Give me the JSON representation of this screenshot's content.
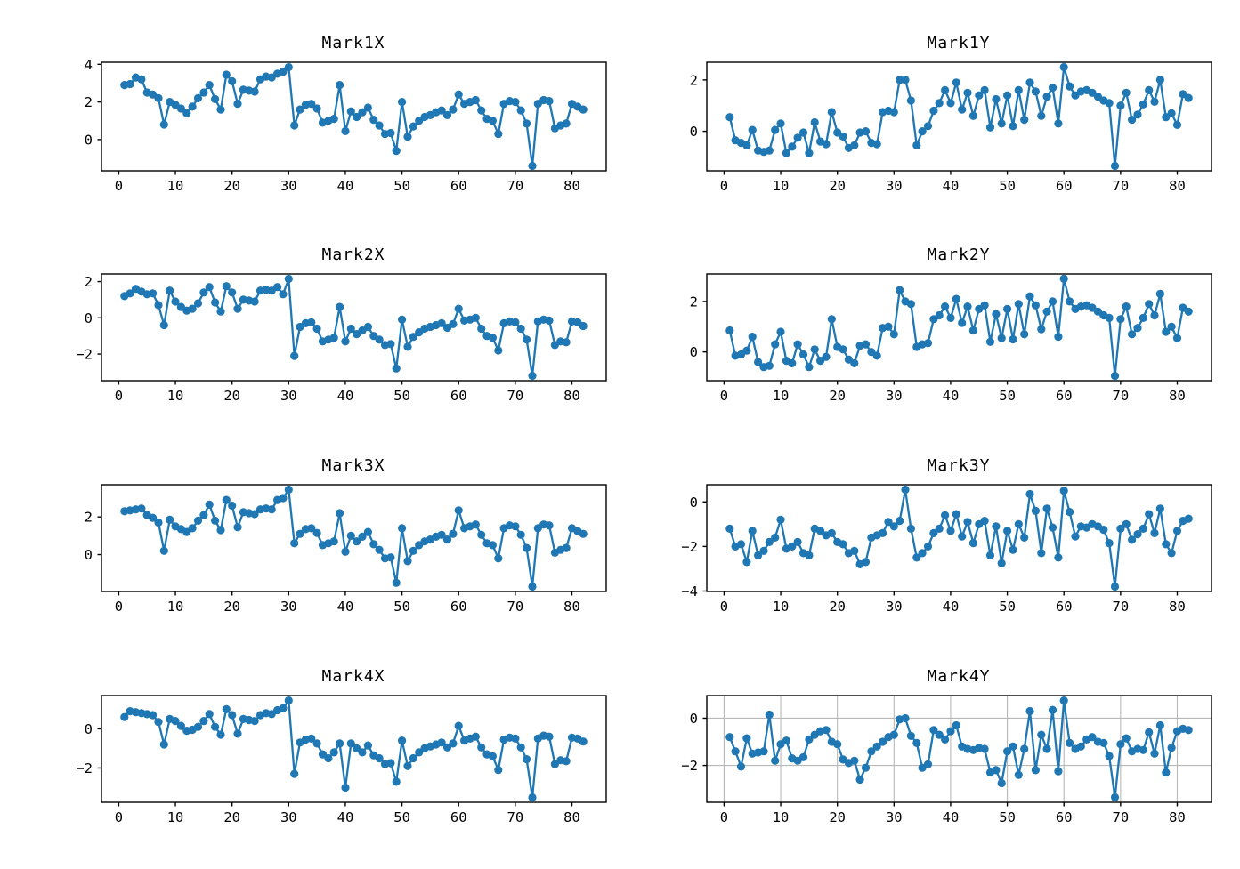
{
  "figure": {
    "background": "#ffffff",
    "accent_color": "#1f77b4",
    "spine_color": "#000000",
    "grid_color": "#b8b8b8"
  },
  "chart_data": [
    {
      "type": "line",
      "title": "Mark1X",
      "xlabel": "",
      "ylabel": "",
      "marker": "circle",
      "color": "#1f77b4",
      "grid": false,
      "x_start": 1,
      "xlim": [
        -3.05,
        86.05
      ],
      "xticks": [
        0,
        10,
        20,
        30,
        40,
        50,
        60,
        70,
        80
      ],
      "ylim": [
        -1.66,
        4.11
      ],
      "yticks": [
        4,
        2,
        0
      ],
      "values": [
        2.9,
        2.95,
        3.3,
        3.2,
        2.5,
        2.4,
        2.2,
        0.8,
        2.0,
        1.85,
        1.65,
        1.4,
        1.75,
        2.2,
        2.5,
        2.9,
        2.15,
        1.6,
        3.45,
        3.1,
        1.9,
        2.65,
        2.6,
        2.55,
        3.2,
        3.35,
        3.3,
        3.5,
        3.6,
        3.85,
        0.75,
        1.6,
        1.85,
        1.9,
        1.65,
        0.9,
        1.0,
        1.1,
        2.9,
        0.45,
        1.5,
        1.2,
        1.45,
        1.7,
        1.05,
        0.75,
        0.3,
        0.35,
        -0.6,
        2.0,
        0.15,
        0.7,
        1.0,
        1.2,
        1.3,
        1.45,
        1.55,
        1.3,
        1.6,
        2.4,
        1.9,
        2.0,
        2.1,
        1.55,
        1.1,
        1.0,
        0.3,
        1.9,
        2.05,
        2.0,
        1.55,
        0.85,
        -1.4,
        1.9,
        2.1,
        2.05,
        0.6,
        0.75,
        0.85,
        1.9,
        1.75,
        1.6
      ]
    },
    {
      "type": "line",
      "title": "Mark1Y",
      "xlabel": "",
      "ylabel": "",
      "marker": "circle",
      "color": "#1f77b4",
      "grid": false,
      "x_start": 1,
      "xlim": [
        -3.05,
        86.05
      ],
      "xticks": [
        0,
        10,
        20,
        30,
        40,
        50,
        60,
        70,
        80
      ],
      "ylim": [
        -1.54,
        2.69
      ],
      "yticks": [
        2,
        0
      ],
      "values": [
        0.55,
        -0.35,
        -0.45,
        -0.55,
        0.05,
        -0.75,
        -0.8,
        -0.75,
        0.05,
        0.3,
        -0.85,
        -0.6,
        -0.25,
        -0.05,
        -0.85,
        0.35,
        -0.4,
        -0.5,
        0.75,
        -0.05,
        -0.2,
        -0.65,
        -0.55,
        -0.05,
        0.0,
        -0.45,
        -0.5,
        0.75,
        0.8,
        0.75,
        2.0,
        2.0,
        1.2,
        -0.55,
        0.0,
        0.2,
        0.8,
        1.1,
        1.6,
        1.1,
        1.9,
        0.85,
        1.5,
        0.6,
        1.4,
        1.6,
        0.15,
        1.25,
        0.3,
        1.4,
        0.2,
        1.6,
        0.45,
        1.9,
        1.55,
        0.6,
        1.35,
        1.7,
        0.3,
        2.5,
        1.75,
        1.4,
        1.55,
        1.6,
        1.5,
        1.35,
        1.2,
        1.1,
        -1.35,
        1.0,
        1.5,
        0.45,
        0.65,
        1.05,
        1.6,
        1.15,
        2.0,
        0.55,
        0.7,
        0.25,
        1.45,
        1.3
      ]
    },
    {
      "type": "line",
      "title": "Mark2X",
      "xlabel": "",
      "ylabel": "",
      "marker": "circle",
      "color": "#1f77b4",
      "grid": false,
      "x_start": 1,
      "xlim": [
        -3.05,
        86.05
      ],
      "xticks": [
        0,
        10,
        20,
        30,
        40,
        50,
        60,
        70,
        80
      ],
      "ylim": [
        -3.47,
        2.42
      ],
      "yticks": [
        2,
        0,
        -2
      ],
      "values": [
        1.2,
        1.35,
        1.6,
        1.45,
        1.3,
        1.35,
        0.7,
        -0.4,
        1.5,
        0.9,
        0.6,
        0.4,
        0.5,
        0.8,
        1.4,
        1.7,
        0.85,
        0.35,
        1.75,
        1.4,
        0.5,
        1.0,
        0.95,
        0.9,
        1.5,
        1.55,
        1.5,
        1.7,
        1.3,
        2.15,
        -2.1,
        -0.5,
        -0.3,
        -0.25,
        -0.6,
        -1.3,
        -1.2,
        -1.1,
        0.6,
        -1.3,
        -0.6,
        -0.9,
        -0.7,
        -0.5,
        -1.0,
        -1.2,
        -1.5,
        -1.45,
        -2.8,
        -0.1,
        -1.6,
        -1.05,
        -0.8,
        -0.6,
        -0.5,
        -0.4,
        -0.3,
        -0.55,
        -0.35,
        0.5,
        -0.15,
        -0.1,
        0.0,
        -0.6,
        -1.0,
        -1.1,
        -1.8,
        -0.3,
        -0.2,
        -0.25,
        -0.6,
        -1.2,
        -3.2,
        -0.2,
        -0.1,
        -0.15,
        -1.5,
        -1.3,
        -1.35,
        -0.2,
        -0.25,
        -0.45
      ]
    },
    {
      "type": "line",
      "title": "Mark2Y",
      "xlabel": "",
      "ylabel": "",
      "marker": "circle",
      "color": "#1f77b4",
      "grid": false,
      "x_start": 1,
      "xlim": [
        -3.05,
        86.05
      ],
      "xticks": [
        0,
        10,
        20,
        30,
        40,
        50,
        60,
        70,
        80
      ],
      "ylim": [
        -1.14,
        3.09
      ],
      "yticks": [
        2,
        0
      ],
      "values": [
        0.85,
        -0.15,
        -0.1,
        0.05,
        0.6,
        -0.4,
        -0.6,
        -0.55,
        0.3,
        0.8,
        -0.35,
        -0.45,
        0.3,
        -0.1,
        -0.6,
        0.1,
        -0.35,
        -0.2,
        1.3,
        0.2,
        0.1,
        -0.3,
        -0.45,
        0.25,
        0.3,
        0.0,
        -0.15,
        0.95,
        1.0,
        0.7,
        2.45,
        2.0,
        1.9,
        0.2,
        0.3,
        0.35,
        1.3,
        1.45,
        1.8,
        1.35,
        2.1,
        1.15,
        1.8,
        0.85,
        1.7,
        1.85,
        0.4,
        1.5,
        0.55,
        1.7,
        0.5,
        1.9,
        0.7,
        2.2,
        1.85,
        0.9,
        1.6,
        2.0,
        0.6,
        2.9,
        2.0,
        1.7,
        1.8,
        1.85,
        1.75,
        1.6,
        1.45,
        1.35,
        -0.95,
        1.3,
        1.8,
        0.7,
        0.95,
        1.35,
        1.9,
        1.45,
        2.3,
        0.8,
        1.0,
        0.55,
        1.75,
        1.6
      ]
    },
    {
      "type": "line",
      "title": "Mark3X",
      "xlabel": "",
      "ylabel": "",
      "marker": "circle",
      "color": "#1f77b4",
      "grid": false,
      "x_start": 1,
      "xlim": [
        -3.05,
        86.05
      ],
      "xticks": [
        0,
        10,
        20,
        30,
        40,
        50,
        60,
        70,
        80
      ],
      "ylim": [
        -1.96,
        3.71
      ],
      "yticks": [
        2,
        0
      ],
      "values": [
        2.3,
        2.35,
        2.4,
        2.45,
        2.1,
        1.95,
        1.7,
        0.2,
        1.85,
        1.5,
        1.35,
        1.2,
        1.4,
        1.8,
        2.1,
        2.65,
        1.8,
        1.3,
        2.9,
        2.6,
        1.45,
        2.25,
        2.2,
        2.15,
        2.4,
        2.45,
        2.4,
        2.9,
        3.0,
        3.45,
        0.6,
        1.1,
        1.35,
        1.4,
        1.15,
        0.5,
        0.6,
        0.7,
        2.2,
        0.15,
        1.0,
        0.7,
        0.95,
        1.2,
        0.55,
        0.25,
        -0.2,
        -0.15,
        -1.5,
        1.4,
        -0.35,
        0.2,
        0.5,
        0.7,
        0.8,
        0.95,
        1.05,
        0.8,
        1.1,
        2.35,
        1.4,
        1.5,
        1.6,
        1.05,
        0.6,
        0.5,
        -0.2,
        1.4,
        1.55,
        1.5,
        1.05,
        0.35,
        -1.7,
        1.4,
        1.6,
        1.55,
        0.1,
        0.25,
        0.35,
        1.4,
        1.25,
        1.1
      ]
    },
    {
      "type": "line",
      "title": "Mark3Y",
      "xlabel": "",
      "ylabel": "",
      "marker": "circle",
      "color": "#1f77b4",
      "grid": false,
      "x_start": 1,
      "xlim": [
        -3.05,
        86.05
      ],
      "xticks": [
        0,
        10,
        20,
        30,
        40,
        50,
        60,
        70,
        80
      ],
      "ylim": [
        -4.02,
        0.77
      ],
      "yticks": [
        0,
        -2,
        -4
      ],
      "values": [
        -1.2,
        -2.0,
        -1.9,
        -2.7,
        -1.3,
        -2.4,
        -2.2,
        -1.8,
        -1.6,
        -0.8,
        -2.1,
        -2.0,
        -1.8,
        -2.3,
        -2.4,
        -1.2,
        -1.3,
        -1.5,
        -1.4,
        -1.8,
        -1.9,
        -2.3,
        -2.2,
        -2.8,
        -2.7,
        -1.6,
        -1.5,
        -1.4,
        -0.9,
        -1.1,
        -0.85,
        0.55,
        -1.2,
        -2.5,
        -2.3,
        -2.0,
        -1.4,
        -1.2,
        -0.6,
        -1.3,
        -0.55,
        -1.55,
        -0.9,
        -1.85,
        -1.0,
        -0.85,
        -2.4,
        -1.1,
        -2.75,
        -1.3,
        -2.15,
        -1.0,
        -1.6,
        0.35,
        -0.4,
        -2.3,
        -0.3,
        -1.15,
        -2.5,
        0.5,
        -0.45,
        -1.55,
        -1.1,
        -1.15,
        -1.0,
        -1.1,
        -1.25,
        -1.85,
        -3.8,
        -1.2,
        -1.0,
        -1.7,
        -1.45,
        -1.2,
        -0.55,
        -1.4,
        -0.3,
        -1.9,
        -2.3,
        -1.3,
        -0.85,
        -0.75
      ]
    },
    {
      "type": "line",
      "title": "Mark4X",
      "xlabel": "",
      "ylabel": "",
      "marker": "circle",
      "color": "#1f77b4",
      "grid": false,
      "x_start": 1,
      "xlim": [
        -3.05,
        86.05
      ],
      "xticks": [
        0,
        10,
        20,
        30,
        40,
        50,
        60,
        70,
        80
      ],
      "ylim": [
        -3.75,
        1.7
      ],
      "yticks": [
        0,
        -2
      ],
      "values": [
        0.6,
        0.9,
        0.85,
        0.8,
        0.75,
        0.7,
        0.35,
        -0.8,
        0.5,
        0.4,
        0.15,
        -0.1,
        -0.05,
        0.1,
        0.4,
        0.75,
        0.1,
        -0.3,
        1.0,
        0.7,
        -0.25,
        0.5,
        0.45,
        0.4,
        0.7,
        0.8,
        0.75,
        0.95,
        1.05,
        1.45,
        -2.3,
        -0.7,
        -0.55,
        -0.5,
        -0.75,
        -1.3,
        -1.5,
        -1.2,
        -0.75,
        -3.0,
        -0.75,
        -1.0,
        -1.2,
        -0.85,
        -1.35,
        -1.5,
        -1.8,
        -1.75,
        -2.7,
        -0.6,
        -1.9,
        -1.5,
        -1.2,
        -1.0,
        -0.9,
        -0.8,
        -0.7,
        -0.95,
        -0.75,
        0.15,
        -0.6,
        -0.5,
        -0.4,
        -0.95,
        -1.3,
        -1.4,
        -2.1,
        -0.55,
        -0.45,
        -0.5,
        -0.95,
        -1.55,
        -3.5,
        -0.5,
        -0.35,
        -0.4,
        -1.8,
        -1.6,
        -1.65,
        -0.45,
        -0.5,
        -0.65
      ]
    },
    {
      "type": "line",
      "title": "Mark4Y",
      "xlabel": "",
      "ylabel": "",
      "marker": "circle",
      "color": "#1f77b4",
      "grid": true,
      "x_start": 1,
      "xlim": [
        -3.05,
        86.05
      ],
      "xticks": [
        0,
        10,
        20,
        30,
        40,
        50,
        60,
        70,
        80
      ],
      "ylim": [
        -3.56,
        0.96
      ],
      "yticks": [
        0,
        -2
      ],
      "values": [
        -0.8,
        -1.4,
        -2.05,
        -0.85,
        -1.5,
        -1.45,
        -1.4,
        0.15,
        -1.8,
        -1.1,
        -0.95,
        -1.7,
        -1.8,
        -1.65,
        -0.9,
        -0.7,
        -0.55,
        -0.5,
        -1.0,
        -1.1,
        -1.75,
        -1.9,
        -1.8,
        -2.6,
        -2.1,
        -1.4,
        -1.2,
        -1.0,
        -0.8,
        -0.7,
        -0.05,
        0.0,
        -0.75,
        -1.05,
        -2.1,
        -1.95,
        -0.5,
        -0.7,
        -0.9,
        -0.55,
        -0.3,
        -1.2,
        -1.3,
        -1.35,
        -1.25,
        -1.3,
        -2.3,
        -2.2,
        -2.75,
        -1.4,
        -1.2,
        -2.4,
        -1.3,
        0.3,
        -2.2,
        -0.7,
        -1.3,
        0.35,
        -2.25,
        0.75,
        -1.05,
        -1.3,
        -1.2,
        -0.9,
        -0.8,
        -1.0,
        -1.05,
        -1.6,
        -3.35,
        -1.1,
        -0.85,
        -1.4,
        -1.3,
        -1.35,
        -0.6,
        -1.5,
        -0.3,
        -2.3,
        -1.25,
        -0.55,
        -0.45,
        -0.5
      ]
    }
  ]
}
